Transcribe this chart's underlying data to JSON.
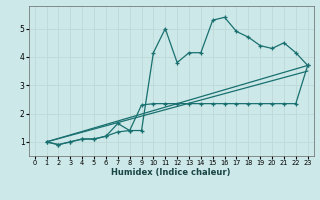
{
  "xlabel": "Humidex (Indice chaleur)",
  "background_color": "#cce8e8",
  "grid_color": "#c0d8d8",
  "line_color": "#1a7070",
  "xlim": [
    -0.5,
    23.5
  ],
  "ylim": [
    0.5,
    5.8
  ],
  "yticks": [
    1,
    2,
    3,
    4,
    5
  ],
  "xticks": [
    0,
    1,
    2,
    3,
    4,
    5,
    6,
    7,
    8,
    9,
    10,
    11,
    12,
    13,
    14,
    15,
    16,
    17,
    18,
    19,
    20,
    21,
    22,
    23
  ],
  "series1_x": [
    1,
    2,
    3,
    4,
    5,
    6,
    7,
    8,
    9,
    10,
    11,
    12,
    13,
    14,
    15,
    16,
    17,
    18,
    19,
    20,
    21,
    22,
    23
  ],
  "series1_y": [
    1.0,
    0.9,
    1.0,
    1.1,
    1.1,
    1.2,
    1.35,
    1.4,
    1.4,
    4.15,
    5.0,
    3.8,
    4.15,
    4.15,
    5.3,
    5.4,
    4.9,
    4.7,
    4.4,
    4.3,
    4.5,
    4.15,
    3.7
  ],
  "series2_x": [
    1,
    2,
    3,
    4,
    5,
    6,
    7,
    8,
    9,
    10,
    11,
    12,
    13,
    14,
    15,
    16,
    17,
    18,
    19,
    20,
    21,
    22,
    23
  ],
  "series2_y": [
    1.0,
    0.9,
    1.0,
    1.1,
    1.1,
    1.2,
    1.65,
    1.4,
    2.3,
    2.35,
    2.35,
    2.35,
    2.35,
    2.35,
    2.35,
    2.35,
    2.35,
    2.35,
    2.35,
    2.35,
    2.35,
    2.35,
    3.7
  ],
  "line3_x": [
    1,
    23
  ],
  "line3_y": [
    1.0,
    3.7
  ],
  "line4_x": [
    1,
    23
  ],
  "line4_y": [
    1.0,
    3.5
  ]
}
